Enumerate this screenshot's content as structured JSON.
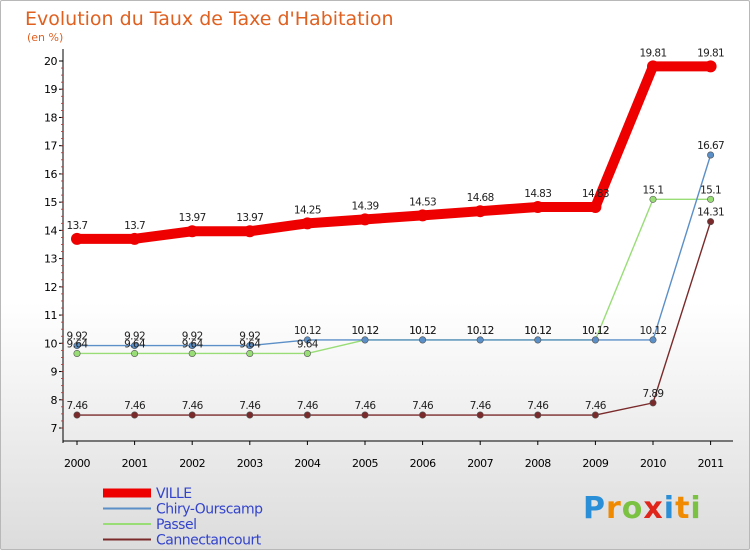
{
  "chart_data": {
    "type": "line",
    "title": "Evolution du Taux de Taxe d'Habitation",
    "subtitle": "(en %)",
    "categories": [
      "2000",
      "2001",
      "2002",
      "2003",
      "2004",
      "2005",
      "2006",
      "2007",
      "2008",
      "2009",
      "2010",
      "2011"
    ],
    "ylim": [
      7,
      20
    ],
    "yticks": [
      7,
      8,
      9,
      10,
      11,
      12,
      13,
      14,
      15,
      16,
      17,
      18,
      19,
      20
    ],
    "grid": false,
    "legend_position": "bottom-left",
    "series": [
      {
        "name": "VILLE",
        "color": "#ee0000",
        "values": [
          13.7,
          13.7,
          13.97,
          13.97,
          14.25,
          14.39,
          14.53,
          14.68,
          14.83,
          14.83,
          19.81,
          19.81
        ],
        "labels": [
          "13.7",
          "13.7",
          "13.97",
          "13.97",
          "14.25",
          "14.39",
          "14.53",
          "14.68",
          "14.83",
          "14.83",
          "19.81",
          "19.81"
        ]
      },
      {
        "name": "Chiry-Ourscamp",
        "color": "#5b8fc7",
        "values": [
          9.92,
          9.92,
          9.92,
          9.92,
          10.12,
          10.12,
          10.12,
          10.12,
          10.12,
          10.12,
          10.12,
          16.67
        ],
        "labels": [
          "9.92",
          "9.92",
          "9.92",
          "9.92",
          "10.12",
          "10.12",
          "10.12",
          "10.12",
          "10.12",
          "10.12",
          "10.12",
          "16.67"
        ]
      },
      {
        "name": "Passel",
        "color": "#99dd77",
        "values": [
          9.64,
          9.64,
          9.64,
          9.64,
          9.64,
          10.12,
          10.12,
          10.12,
          10.12,
          10.12,
          15.1,
          15.1
        ],
        "labels": [
          "9.64",
          "9.64",
          "9.64",
          "9.64",
          "9.64",
          "10.12",
          "10.12",
          "10.12",
          "10.12",
          "10.12",
          "15.1",
          "15.1"
        ]
      },
      {
        "name": "Cannectancourt",
        "color": "#7a2a2a",
        "values": [
          7.46,
          7.46,
          7.46,
          7.46,
          7.46,
          7.46,
          7.46,
          7.46,
          7.46,
          7.46,
          7.89,
          14.31
        ],
        "labels": [
          "7.46",
          "7.46",
          "7.46",
          "7.46",
          "7.46",
          "7.46",
          "7.46",
          "7.46",
          "7.46",
          "7.46",
          "7.89",
          "14.31"
        ]
      }
    ]
  },
  "brand": {
    "letters": [
      "P",
      "r",
      "o",
      "x",
      "i",
      "t",
      "i"
    ],
    "colors": [
      "#2b8fd8",
      "#f08a00",
      "#7bc142",
      "#e0251b",
      "#2b8fd8",
      "#f08a00",
      "#7bc142"
    ]
  }
}
